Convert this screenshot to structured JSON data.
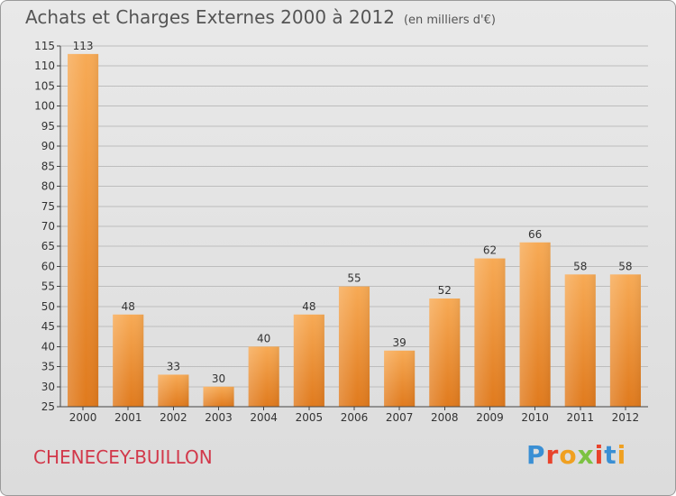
{
  "header": {
    "title": "Achats et Charges Externes 2000 à 2012",
    "unit": "(en milliers d'€)"
  },
  "footer": {
    "city": "CHENECEY-BUILLON",
    "logo": "Proxiti",
    "logo_colors": [
      "#3a8fd4",
      "#e8432b",
      "#f0a020",
      "#7cc242",
      "#e8432b",
      "#3a8fd4",
      "#f0a020"
    ]
  },
  "colors": {
    "bar_top": "#f7aa55",
    "bar_bottom": "#e07a1d",
    "grid": "#bdbdbd",
    "axis": "#444444"
  },
  "chart_data": {
    "type": "bar",
    "title": "Achats et Charges Externes 2000 à 2012",
    "subtitle": "(en milliers d'€)",
    "xlabel": "",
    "ylabel": "",
    "categories": [
      "2000",
      "2001",
      "2002",
      "2003",
      "2004",
      "2005",
      "2006",
      "2007",
      "2008",
      "2009",
      "2010",
      "2011",
      "2012"
    ],
    "values": [
      113,
      48,
      33,
      30,
      40,
      48,
      55,
      39,
      52,
      62,
      66,
      58,
      58
    ],
    "ylim": [
      25,
      115
    ],
    "yticks": [
      25,
      30,
      35,
      40,
      45,
      50,
      55,
      60,
      65,
      70,
      75,
      80,
      85,
      90,
      95,
      100,
      105,
      110,
      115
    ],
    "grid": true,
    "data_labels": true
  }
}
